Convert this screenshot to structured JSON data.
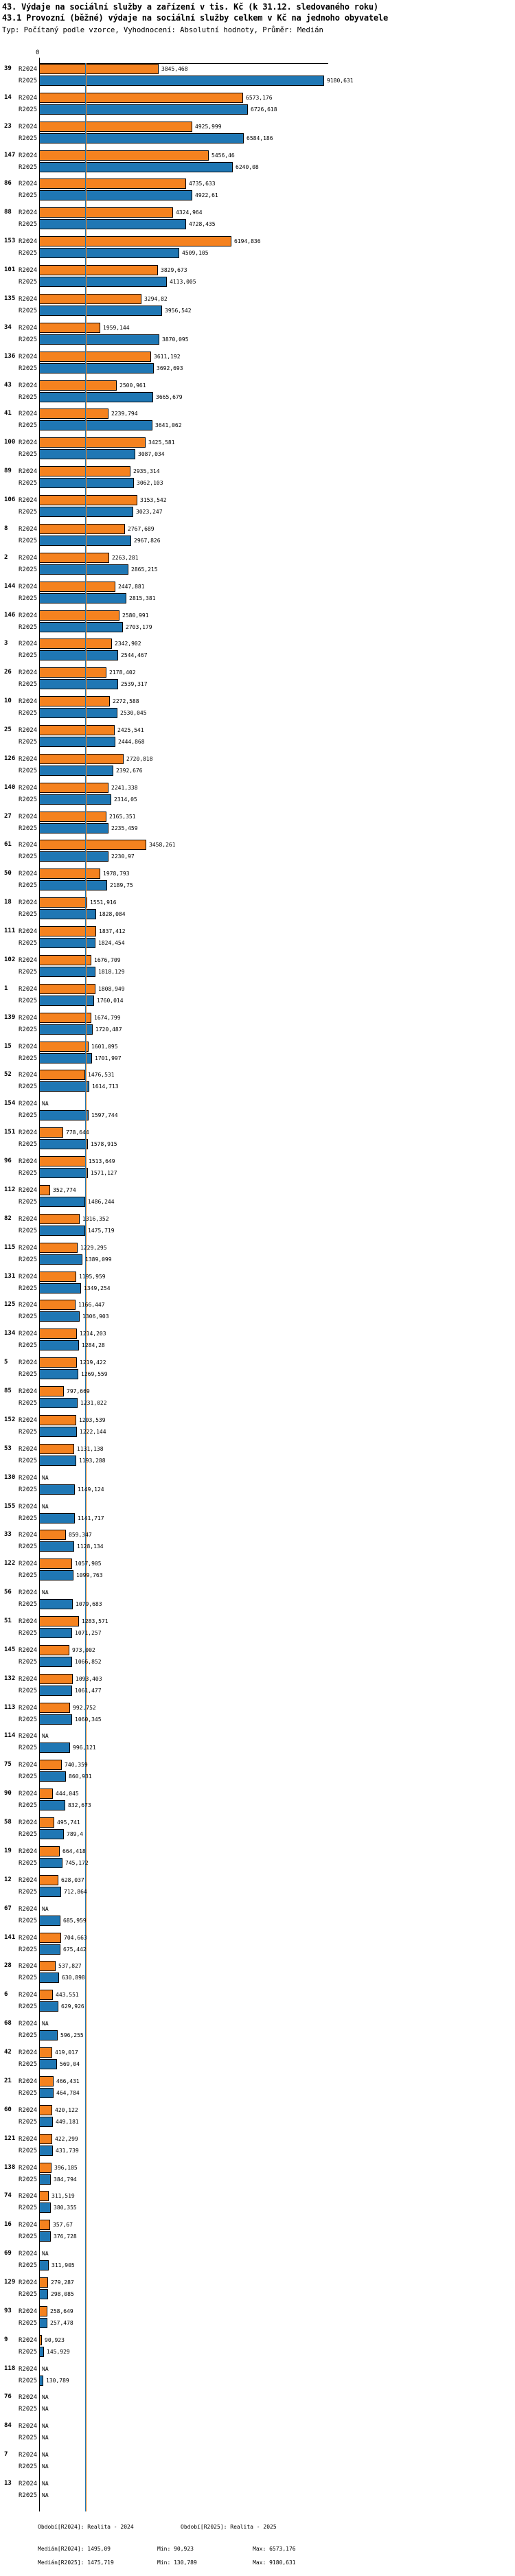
{
  "header": {
    "title": "43. Výdaje na sociální služby a zařízení v tis. Kč (k 31.12. sledovaného roku)",
    "subtitle": "43.1 Provozní (běžné) výdaje na sociální služby celkem v Kč na jednoho obyvatele",
    "meta": "Typ: Počítaný podle vzorce, Vyhodnocení: Absolutní hodnoty, Průměr: Medián"
  },
  "chart_data": {
    "type": "bar",
    "orientation": "horizontal",
    "title": "43. Výdaje na sociální služby a zařízení v tis. Kč (k 31.12. sledovaného roku)",
    "subtitle": "43.1 Provozní (běžné) výdaje na sociální služby celkem v Kč na jednoho obyvatele",
    "series_labels": [
      "R2024",
      "R2025"
    ],
    "series_colors": {
      "R2024": "#f5821f",
      "R2025": "#1f77b4"
    },
    "na_text": "NA",
    "axis": {
      "zero_tick": "0",
      "x_max_units": 9300,
      "unit": "Kč na jednoho obyvatele"
    },
    "legend": [
      "Období[R2024]: Realita - 2024",
      "Období[R2025]: Realita - 2025"
    ],
    "medians": {
      "R2024": 1495.09,
      "R2025": 1475.719
    },
    "groups": [
      {
        "label": "39",
        "values": {
          "R2024": "3845,468",
          "R2025": "9180,631"
        }
      },
      {
        "label": "14",
        "values": {
          "R2024": "6573,176",
          "R2025": "6726,618"
        }
      },
      {
        "label": "23",
        "values": {
          "R2024": "4925,999",
          "R2025": "6584,186"
        }
      },
      {
        "label": "147",
        "values": {
          "R2024": "5456,46",
          "R2025": "6240,08"
        }
      },
      {
        "label": "86",
        "values": {
          "R2024": "4735,633",
          "R2025": "4922,61"
        }
      },
      {
        "label": "88",
        "values": {
          "R2024": "4324,964",
          "R2025": "4728,435"
        }
      },
      {
        "label": "153",
        "values": {
          "R2024": "6194,836",
          "R2025": "4509,105"
        }
      },
      {
        "label": "101",
        "values": {
          "R2024": "3829,673",
          "R2025": "4113,005"
        }
      },
      {
        "label": "135",
        "values": {
          "R2024": "3294,82",
          "R2025": "3956,542"
        }
      },
      {
        "label": "34",
        "values": {
          "R2024": "1959,144",
          "R2025": "3870,095"
        }
      },
      {
        "label": "136",
        "values": {
          "R2024": "3611,192",
          "R2025": "3692,693"
        }
      },
      {
        "label": "43",
        "values": {
          "R2024": "2500,961",
          "R2025": "3665,679"
        }
      },
      {
        "label": "41",
        "values": {
          "R2024": "2239,794",
          "R2025": "3641,062"
        }
      },
      {
        "label": "100",
        "values": {
          "R2024": "3425,581",
          "R2025": "3087,034"
        }
      },
      {
        "label": "89",
        "values": {
          "R2024": "2935,314",
          "R2025": "3062,103"
        }
      },
      {
        "label": "106",
        "values": {
          "R2024": "3153,542",
          "R2025": "3023,247"
        }
      },
      {
        "label": "8",
        "values": {
          "R2024": "2767,689",
          "R2025": "2967,826"
        }
      },
      {
        "label": "2",
        "values": {
          "R2024": "2263,281",
          "R2025": "2865,215"
        }
      },
      {
        "label": "144",
        "values": {
          "R2024": "2447,881",
          "R2025": "2815,381"
        }
      },
      {
        "label": "146",
        "values": {
          "R2024": "2580,991",
          "R2025": "2703,179"
        }
      },
      {
        "label": "3",
        "values": {
          "R2024": "2342,902",
          "R2025": "2544,467"
        }
      },
      {
        "label": "26",
        "values": {
          "R2024": "2178,402",
          "R2025": "2539,317"
        }
      },
      {
        "label": "10",
        "values": {
          "R2024": "2272,588",
          "R2025": "2530,045"
        }
      },
      {
        "label": "25",
        "values": {
          "R2024": "2425,541",
          "R2025": "2444,868"
        }
      },
      {
        "label": "126",
        "values": {
          "R2024": "2720,818",
          "R2025": "2392,676"
        }
      },
      {
        "label": "140",
        "values": {
          "R2024": "2241,338",
          "R2025": "2314,05"
        }
      },
      {
        "label": "27",
        "values": {
          "R2024": "2165,351",
          "R2025": "2235,459"
        }
      },
      {
        "label": "61",
        "values": {
          "R2024": "3458,261",
          "R2025": "2230,97"
        }
      },
      {
        "label": "50",
        "values": {
          "R2024": "1978,793",
          "R2025": "2189,75"
        }
      },
      {
        "label": "18",
        "values": {
          "R2024": "1551,916",
          "R2025": "1828,084"
        }
      },
      {
        "label": "111",
        "values": {
          "R2024": "1837,412",
          "R2025": "1824,454"
        }
      },
      {
        "label": "102",
        "values": {
          "R2024": "1676,709",
          "R2025": "1818,129"
        }
      },
      {
        "label": "1",
        "values": {
          "R2024": "1808,949",
          "R2025": "1760,014"
        }
      },
      {
        "label": "139",
        "values": {
          "R2024": "1674,799",
          "R2025": "1720,487"
        }
      },
      {
        "label": "15",
        "values": {
          "R2024": "1601,095",
          "R2025": "1701,997"
        }
      },
      {
        "label": "52",
        "values": {
          "R2024": "1476,531",
          "R2025": "1614,713"
        }
      },
      {
        "label": "154",
        "values": {
          "R2024": "NA",
          "R2025": "1597,744"
        }
      },
      {
        "label": "151",
        "values": {
          "R2024": "778,644",
          "R2025": "1578,915"
        }
      },
      {
        "label": "96",
        "values": {
          "R2024": "1513,649",
          "R2025": "1571,127"
        }
      },
      {
        "label": "112",
        "values": {
          "R2024": "352,774",
          "R2025": "1486,244"
        }
      },
      {
        "label": "82",
        "values": {
          "R2024": "1316,352",
          "R2025": "1475,719"
        }
      },
      {
        "label": "115",
        "values": {
          "R2024": "1229,295",
          "R2025": "1389,099"
        }
      },
      {
        "label": "131",
        "values": {
          "R2024": "1195,959",
          "R2025": "1349,254"
        }
      },
      {
        "label": "125",
        "values": {
          "R2024": "1166,447",
          "R2025": "1306,903"
        }
      },
      {
        "label": "134",
        "values": {
          "R2024": "1214,203",
          "R2025": "1284,28"
        }
      },
      {
        "label": "5",
        "values": {
          "R2024": "1219,422",
          "R2025": "1269,559"
        }
      },
      {
        "label": "85",
        "values": {
          "R2024": "797,669",
          "R2025": "1231,022"
        }
      },
      {
        "label": "152",
        "values": {
          "R2024": "1203,539",
          "R2025": "1222,144"
        }
      },
      {
        "label": "53",
        "values": {
          "R2024": "1131,138",
          "R2025": "1193,288"
        }
      },
      {
        "label": "130",
        "values": {
          "R2024": "NA",
          "R2025": "1149,124"
        }
      },
      {
        "label": "155",
        "values": {
          "R2024": "NA",
          "R2025": "1141,717"
        }
      },
      {
        "label": "33",
        "values": {
          "R2024": "859,347",
          "R2025": "1128,134"
        }
      },
      {
        "label": "122",
        "values": {
          "R2024": "1057,905",
          "R2025": "1099,763"
        }
      },
      {
        "label": "56",
        "values": {
          "R2024": "NA",
          "R2025": "1079,683"
        }
      },
      {
        "label": "51",
        "values": {
          "R2024": "1283,571",
          "R2025": "1071,257"
        }
      },
      {
        "label": "145",
        "values": {
          "R2024": "973,002",
          "R2025": "1066,852"
        }
      },
      {
        "label": "132",
        "values": {
          "R2024": "1093,403",
          "R2025": "1061,477"
        }
      },
      {
        "label": "113",
        "values": {
          "R2024": "992,752",
          "R2025": "1060,345"
        }
      },
      {
        "label": "114",
        "values": {
          "R2024": "NA",
          "R2025": "996,121"
        }
      },
      {
        "label": "75",
        "values": {
          "R2024": "740,359",
          "R2025": "860,931"
        }
      },
      {
        "label": "90",
        "values": {
          "R2024": "444,045",
          "R2025": "832,673"
        }
      },
      {
        "label": "58",
        "values": {
          "R2024": "495,741",
          "R2025": "789,4"
        }
      },
      {
        "label": "19",
        "values": {
          "R2024": "664,418",
          "R2025": "745,172"
        }
      },
      {
        "label": "12",
        "values": {
          "R2024": "628,037",
          "R2025": "712,864"
        }
      },
      {
        "label": "67",
        "values": {
          "R2024": "NA",
          "R2025": "685,959"
        }
      },
      {
        "label": "141",
        "values": {
          "R2024": "704,663",
          "R2025": "675,442"
        }
      },
      {
        "label": "28",
        "values": {
          "R2024": "537,827",
          "R2025": "630,898"
        }
      },
      {
        "label": "6",
        "values": {
          "R2024": "443,551",
          "R2025": "629,926"
        }
      },
      {
        "label": "68",
        "values": {
          "R2024": "NA",
          "R2025": "596,255"
        }
      },
      {
        "label": "42",
        "values": {
          "R2024": "419,017",
          "R2025": "569,04"
        }
      },
      {
        "label": "21",
        "values": {
          "R2024": "466,431",
          "R2025": "464,784"
        }
      },
      {
        "label": "60",
        "values": {
          "R2024": "420,122",
          "R2025": "449,181"
        }
      },
      {
        "label": "121",
        "values": {
          "R2024": "422,299",
          "R2025": "431,739"
        }
      },
      {
        "label": "138",
        "values": {
          "R2024": "396,185",
          "R2025": "384,794"
        }
      },
      {
        "label": "74",
        "values": {
          "R2024": "311,519",
          "R2025": "380,355"
        }
      },
      {
        "label": "16",
        "values": {
          "R2024": "357,67",
          "R2025": "376,728"
        }
      },
      {
        "label": "69",
        "values": {
          "R2024": "NA",
          "R2025": "311,905"
        }
      },
      {
        "label": "129",
        "values": {
          "R2024": "279,287",
          "R2025": "298,085"
        }
      },
      {
        "label": "93",
        "values": {
          "R2024": "258,649",
          "R2025": "257,478"
        }
      },
      {
        "label": "9",
        "values": {
          "R2024": "90,923",
          "R2025": "145,929"
        }
      },
      {
        "label": "118",
        "values": {
          "R2024": "NA",
          "R2025": "130,789"
        }
      },
      {
        "label": "76",
        "values": {
          "R2024": "NA",
          "R2025": "NA"
        }
      },
      {
        "label": "84",
        "values": {
          "R2024": "NA",
          "R2025": "NA"
        }
      },
      {
        "label": "7",
        "values": {
          "R2024": "NA",
          "R2025": "NA"
        }
      },
      {
        "label": "13",
        "values": {
          "R2024": "NA",
          "R2025": "NA"
        }
      }
    ]
  },
  "footer": {
    "rows": [
      {
        "median": "Medián[R2024]: 1495,09",
        "min": "Min: 90,923",
        "max": "Max: 6573,176"
      },
      {
        "median": "Medián[R2025]: 1475,719",
        "min": "Min: 130,789",
        "max": "Max: 9180,631"
      }
    ]
  }
}
